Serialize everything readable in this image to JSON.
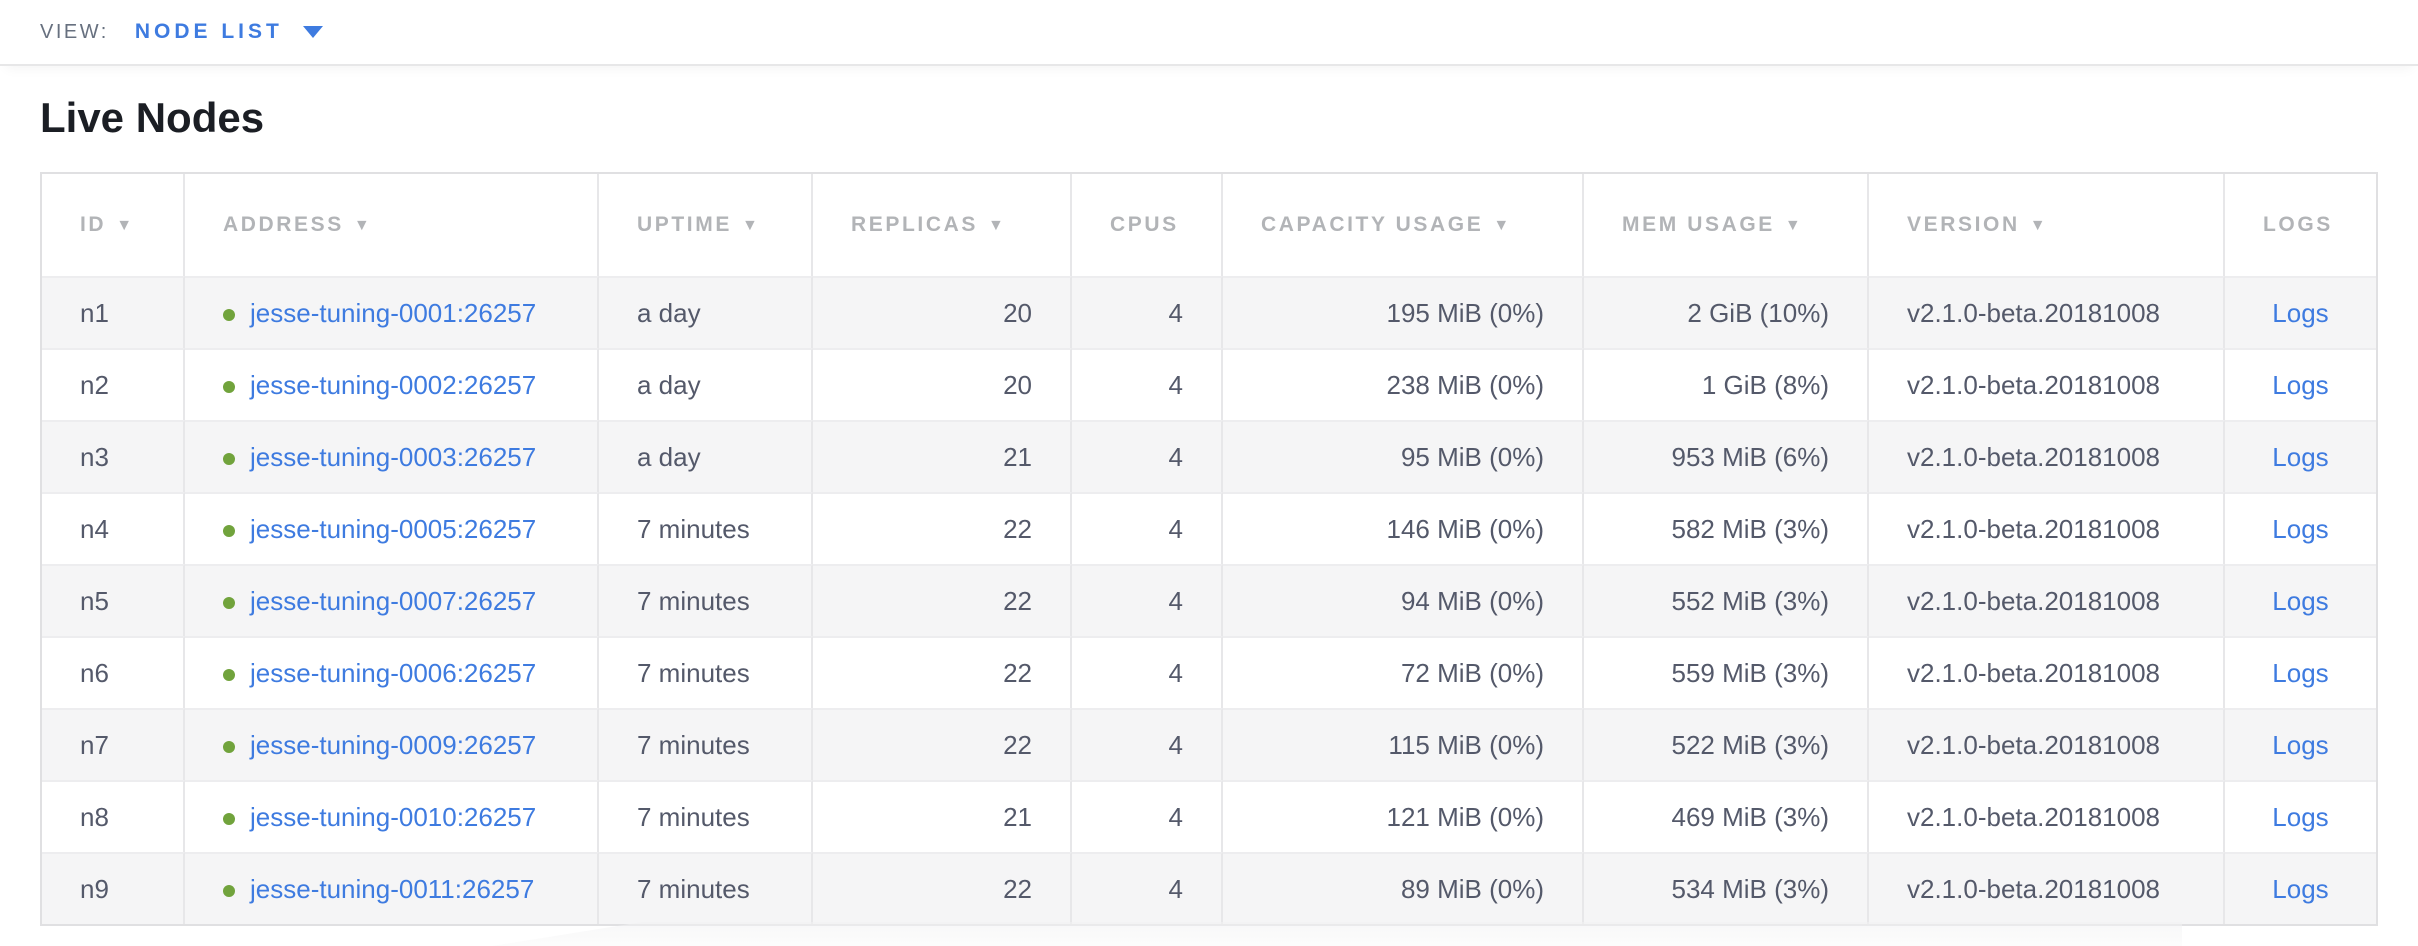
{
  "view_bar": {
    "label": "VIEW:",
    "selected_view": "NODE LIST"
  },
  "page": {
    "title": "Live Nodes"
  },
  "colors": {
    "link_blue": "#3e7be0",
    "live_green": "#71a33c",
    "header_gray": "#b2b4b7",
    "cell_text": "#54596a",
    "zebra_row": "#f5f5f6",
    "table_border": "#e0e0e2"
  },
  "table": {
    "sort_icon": "▼",
    "logs_label": "Logs",
    "columns": [
      {
        "label": "ID",
        "sortable": true
      },
      {
        "label": "ADDRESS",
        "sortable": true
      },
      {
        "label": "UPTIME",
        "sortable": true
      },
      {
        "label": "REPLICAS",
        "sortable": true
      },
      {
        "label": "CPUS",
        "sortable": false
      },
      {
        "label": "CAPACITY USAGE",
        "sortable": true
      },
      {
        "label": "MEM USAGE",
        "sortable": true
      },
      {
        "label": "VERSION",
        "sortable": true
      },
      {
        "label": "LOGS",
        "sortable": false
      }
    ],
    "rows": [
      {
        "id": "n1",
        "address": "jesse-tuning-0001:26257",
        "uptime": "a day",
        "replicas": "20",
        "cpus": "4",
        "capacity_usage": "195 MiB (0%)",
        "mem_usage": "2 GiB (10%)",
        "version": "v2.1.0-beta.20181008"
      },
      {
        "id": "n2",
        "address": "jesse-tuning-0002:26257",
        "uptime": "a day",
        "replicas": "20",
        "cpus": "4",
        "capacity_usage": "238 MiB (0%)",
        "mem_usage": "1 GiB (8%)",
        "version": "v2.1.0-beta.20181008"
      },
      {
        "id": "n3",
        "address": "jesse-tuning-0003:26257",
        "uptime": "a day",
        "replicas": "21",
        "cpus": "4",
        "capacity_usage": "95 MiB (0%)",
        "mem_usage": "953 MiB (6%)",
        "version": "v2.1.0-beta.20181008"
      },
      {
        "id": "n4",
        "address": "jesse-tuning-0005:26257",
        "uptime": "7 minutes",
        "replicas": "22",
        "cpus": "4",
        "capacity_usage": "146 MiB (0%)",
        "mem_usage": "582 MiB (3%)",
        "version": "v2.1.0-beta.20181008"
      },
      {
        "id": "n5",
        "address": "jesse-tuning-0007:26257",
        "uptime": "7 minutes",
        "replicas": "22",
        "cpus": "4",
        "capacity_usage": "94 MiB (0%)",
        "mem_usage": "552 MiB (3%)",
        "version": "v2.1.0-beta.20181008"
      },
      {
        "id": "n6",
        "address": "jesse-tuning-0006:26257",
        "uptime": "7 minutes",
        "replicas": "22",
        "cpus": "4",
        "capacity_usage": "72 MiB (0%)",
        "mem_usage": "559 MiB (3%)",
        "version": "v2.1.0-beta.20181008"
      },
      {
        "id": "n7",
        "address": "jesse-tuning-0009:26257",
        "uptime": "7 minutes",
        "replicas": "22",
        "cpus": "4",
        "capacity_usage": "115 MiB (0%)",
        "mem_usage": "522 MiB (3%)",
        "version": "v2.1.0-beta.20181008"
      },
      {
        "id": "n8",
        "address": "jesse-tuning-0010:26257",
        "uptime": "7 minutes",
        "replicas": "21",
        "cpus": "4",
        "capacity_usage": "121 MiB (0%)",
        "mem_usage": "469 MiB (3%)",
        "version": "v2.1.0-beta.20181008"
      },
      {
        "id": "n9",
        "address": "jesse-tuning-0011:26257",
        "uptime": "7 minutes",
        "replicas": "22",
        "cpus": "4",
        "capacity_usage": "89 MiB (0%)",
        "mem_usage": "534 MiB (3%)",
        "version": "v2.1.0-beta.20181008"
      }
    ]
  }
}
